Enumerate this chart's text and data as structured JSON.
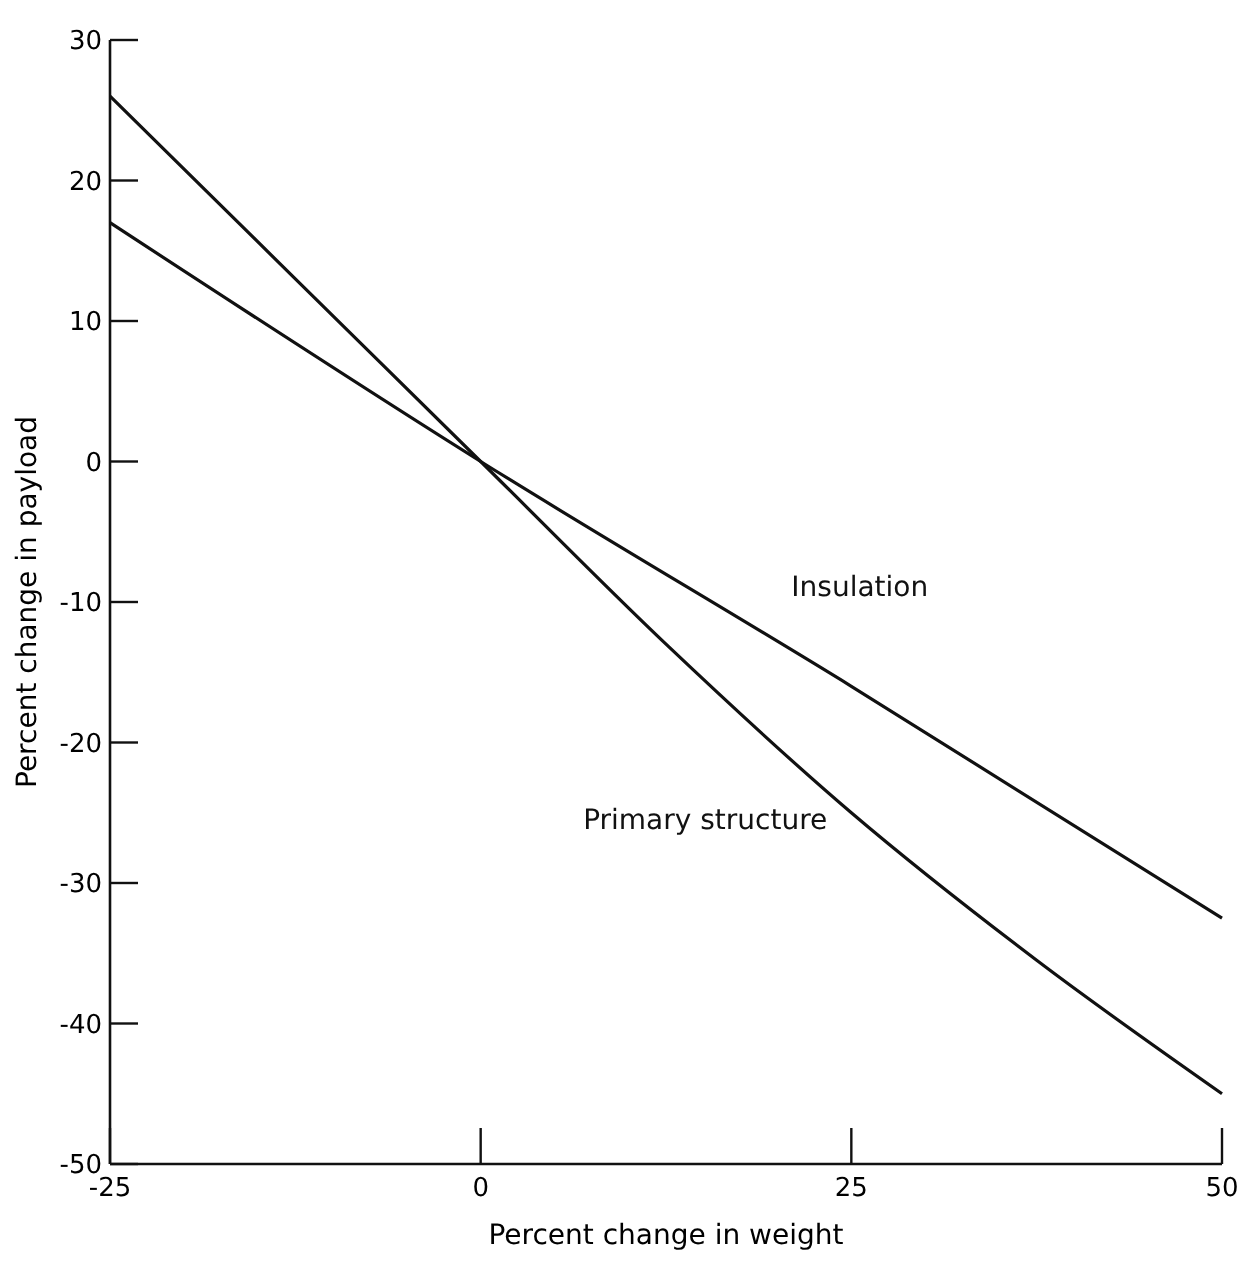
{
  "chart_data": {
    "type": "line",
    "xlabel": "Percent change in weight",
    "ylabel": "Percent change in payload",
    "xlim": [
      -25,
      50
    ],
    "xticks": [
      -25,
      0,
      25,
      50
    ],
    "ylim": [
      -50,
      30
    ],
    "yticks": [
      30,
      20,
      10,
      0,
      -10,
      -20,
      -30,
      -40,
      -50
    ],
    "grid": false,
    "marker": "none",
    "line_style": "solid",
    "series": [
      {
        "name": "Insulation",
        "color": "#111111",
        "x": [
          -25,
          0,
          25,
          50
        ],
        "values": [
          17,
          0,
          -16,
          -32.5
        ]
      },
      {
        "name": "Primary structure",
        "color": "#111111",
        "x": [
          -25,
          -12.5,
          0,
          12.5,
          25,
          37.5,
          50
        ],
        "values": [
          26,
          13,
          0,
          -13,
          -25,
          -35.5,
          -45
        ]
      }
    ]
  }
}
